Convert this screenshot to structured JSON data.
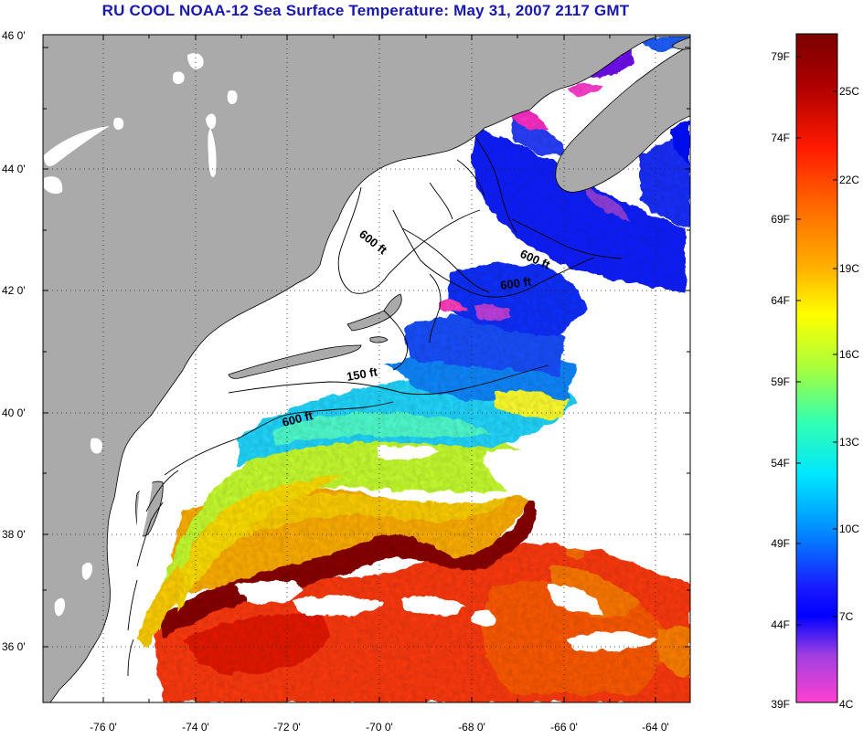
{
  "title": "RU COOL  NOAA-12  Sea Surface Temperature:  May 31, 2007 2117 GMT",
  "map": {
    "lat_labels": [
      "46 0'",
      "44 0'",
      "42 0'",
      "40 0'",
      "38 0'",
      "36 0'"
    ],
    "lon_labels": [
      "-76 0'",
      "-74 0'",
      "-72 0'",
      "-70 0'",
      "-68 0'",
      "-66 0'",
      "-64 0'"
    ],
    "lat_range": [
      35,
      46
    ],
    "lon_range": [
      -77,
      -63
    ],
    "contour_labels": [
      "600 ft",
      "600 ft",
      "600 ft",
      "150 ft",
      "600 ft"
    ]
  },
  "colorbar": {
    "fahrenheit": [
      "79F",
      "74F",
      "69F",
      "64F",
      "59F",
      "54F",
      "49F",
      "44F",
      "39F"
    ],
    "celsius": [
      "25C",
      "22C",
      "19C",
      "16C",
      "13C",
      "10C",
      "7C",
      "4C"
    ],
    "colors": [
      "#7a0000",
      "#d60000",
      "#ff2a00",
      "#ff7b00",
      "#ffbf00",
      "#ffff00",
      "#a8ff3c",
      "#33ffb0",
      "#00e8ff",
      "#0094ff",
      "#2030ff",
      "#0000ff",
      "#a040e0",
      "#ff40d0"
    ]
  }
}
